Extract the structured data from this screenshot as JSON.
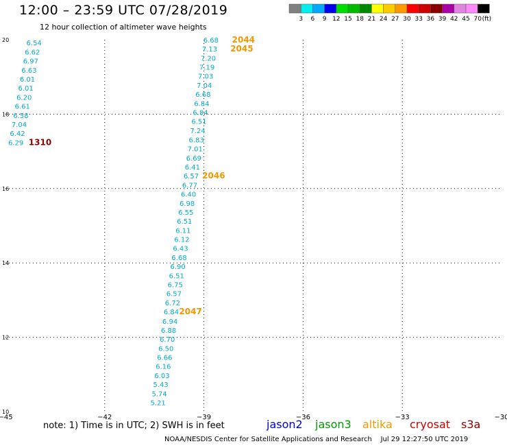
{
  "title": "12:00 – 23:59 UTC 07/28/2019",
  "subtitle": "12 hour collection of altimeter wave heights",
  "note": "note: 1) Time is in UTC; 2) SWH is in feet",
  "credit": "NOAA/NESDIS Center for Satellite Applications and Research    Jul 29 12:27:50 UTC 2019",
  "satellites": [
    {
      "name": "jason2",
      "color": "#0000dd"
    },
    {
      "name": "jason3",
      "color": "#009900"
    },
    {
      "name": "altika",
      "color": "#ee9900"
    },
    {
      "name": "cryosat",
      "color": "#cc0000"
    },
    {
      "name": "s3a",
      "color": "#8b0000"
    }
  ],
  "colorbar": {
    "unit": "(ft)",
    "bins": [
      {
        "label": "3",
        "color": "#808080"
      },
      {
        "label": "6",
        "color": "#00eeee"
      },
      {
        "label": "9",
        "color": "#00aaff"
      },
      {
        "label": "12",
        "color": "#0000ee"
      },
      {
        "label": "15",
        "color": "#00dd00"
      },
      {
        "label": "18",
        "color": "#00bb00"
      },
      {
        "label": "21",
        "color": "#008800"
      },
      {
        "label": "24",
        "color": "#ffff00"
      },
      {
        "label": "27",
        "color": "#ffcc00"
      },
      {
        "label": "30",
        "color": "#ff9900"
      },
      {
        "label": "33",
        "color": "#ff0000"
      },
      {
        "label": "36",
        "color": "#cc0000"
      },
      {
        "label": "39",
        "color": "#880000"
      },
      {
        "label": "42",
        "color": "#aa00aa"
      },
      {
        "label": "45",
        "color": "#dd88dd"
      },
      {
        "label": "70",
        "color": "#ff88ff"
      },
      {
        "label": "",
        "color": "#000000"
      }
    ]
  },
  "chart_data": {
    "type": "scatter",
    "xlim": [
      -45,
      -30
    ],
    "ylim": [
      10,
      20
    ],
    "xticks": [
      -45,
      -42,
      -39,
      -36,
      -33,
      -30
    ],
    "yticks": [
      10,
      12,
      14,
      16,
      18,
      20
    ],
    "grid": true,
    "series": [
      {
        "name": "altika",
        "color": "#00aacc",
        "points": [
          {
            "x": -44.45,
            "y": 19.93,
            "v": "6.54"
          },
          {
            "x": -44.5,
            "y": 19.68,
            "v": "6.62"
          },
          {
            "x": -44.55,
            "y": 19.44,
            "v": "6.97"
          },
          {
            "x": -44.6,
            "y": 19.19,
            "v": "6.63"
          },
          {
            "x": -44.65,
            "y": 18.95,
            "v": "6.01"
          },
          {
            "x": -44.7,
            "y": 18.71,
            "v": "6.01"
          },
          {
            "x": -44.75,
            "y": 18.46,
            "v": "6.20"
          },
          {
            "x": -44.8,
            "y": 18.22,
            "v": "6.61"
          },
          {
            "x": -44.85,
            "y": 17.97,
            "v": "6.58"
          },
          {
            "x": -44.9,
            "y": 17.73,
            "v": "7.04"
          },
          {
            "x": -44.95,
            "y": 17.49,
            "v": "6.42"
          },
          {
            "x": -45.0,
            "y": 17.24,
            "v": "6.29"
          },
          {
            "x": -39.1,
            "y": 20.0,
            "v": "6.68"
          },
          {
            "x": -39.14,
            "y": 19.76,
            "v": "7.13"
          },
          {
            "x": -39.18,
            "y": 19.51,
            "v": "7.20"
          },
          {
            "x": -39.22,
            "y": 19.27,
            "v": "7.19"
          },
          {
            "x": -39.26,
            "y": 19.03,
            "v": "7.03"
          },
          {
            "x": -39.3,
            "y": 18.78,
            "v": "7.04"
          },
          {
            "x": -39.34,
            "y": 18.54,
            "v": "6.68"
          },
          {
            "x": -39.38,
            "y": 18.29,
            "v": "6.84"
          },
          {
            "x": -39.42,
            "y": 18.05,
            "v": "6.84"
          },
          {
            "x": -39.46,
            "y": 17.81,
            "v": "6.51"
          },
          {
            "x": -39.5,
            "y": 17.56,
            "v": "7.24"
          },
          {
            "x": -39.54,
            "y": 17.32,
            "v": "6.83"
          },
          {
            "x": -39.58,
            "y": 17.08,
            "v": "7.01"
          },
          {
            "x": -39.62,
            "y": 16.83,
            "v": "6.69"
          },
          {
            "x": -39.66,
            "y": 16.59,
            "v": "6.41"
          },
          {
            "x": -39.7,
            "y": 16.35,
            "v": "6.57"
          },
          {
            "x": -39.74,
            "y": 16.1,
            "v": "6.77"
          },
          {
            "x": -39.78,
            "y": 15.86,
            "v": "6.40"
          },
          {
            "x": -39.82,
            "y": 15.61,
            "v": "6.98"
          },
          {
            "x": -39.86,
            "y": 15.37,
            "v": "6.55"
          },
          {
            "x": -39.9,
            "y": 15.13,
            "v": "6.51"
          },
          {
            "x": -39.94,
            "y": 14.88,
            "v": "6.11"
          },
          {
            "x": -39.98,
            "y": 14.64,
            "v": "6.12"
          },
          {
            "x": -40.02,
            "y": 14.4,
            "v": "6.43"
          },
          {
            "x": -40.06,
            "y": 14.15,
            "v": "6.68"
          },
          {
            "x": -40.1,
            "y": 13.91,
            "v": "6.90"
          },
          {
            "x": -40.14,
            "y": 13.66,
            "v": "6.51"
          },
          {
            "x": -40.18,
            "y": 13.42,
            "v": "6.75"
          },
          {
            "x": -40.22,
            "y": 13.18,
            "v": "6.57"
          },
          {
            "x": -40.26,
            "y": 12.93,
            "v": "6.72"
          },
          {
            "x": -40.3,
            "y": 12.69,
            "v": "6.84"
          },
          {
            "x": -40.34,
            "y": 12.44,
            "v": "6.94"
          },
          {
            "x": -40.38,
            "y": 12.2,
            "v": "6.88"
          },
          {
            "x": -40.42,
            "y": 11.96,
            "v": "6.70"
          },
          {
            "x": -40.46,
            "y": 11.71,
            "v": "6.50"
          },
          {
            "x": -40.5,
            "y": 11.47,
            "v": "6.66"
          },
          {
            "x": -40.54,
            "y": 11.23,
            "v": "6.16"
          },
          {
            "x": -40.58,
            "y": 10.98,
            "v": "6.03"
          },
          {
            "x": -40.62,
            "y": 10.74,
            "v": "5.43"
          },
          {
            "x": -40.66,
            "y": 10.49,
            "v": "5.74"
          },
          {
            "x": -40.7,
            "y": 10.25,
            "v": "5.21"
          }
        ]
      }
    ],
    "annotations": [
      {
        "x": -44.3,
        "y": 17.24,
        "text": "1310",
        "color": "#8b0000"
      },
      {
        "x": -38.15,
        "y": 20.0,
        "text": "2044",
        "color": "#ee9900"
      },
      {
        "x": -38.2,
        "y": 19.76,
        "text": "2045",
        "color": "#ee9900"
      },
      {
        "x": -39.05,
        "y": 16.35,
        "text": "2046",
        "color": "#ee9900"
      },
      {
        "x": -39.75,
        "y": 12.69,
        "text": "2047",
        "color": "#ee9900"
      }
    ]
  }
}
